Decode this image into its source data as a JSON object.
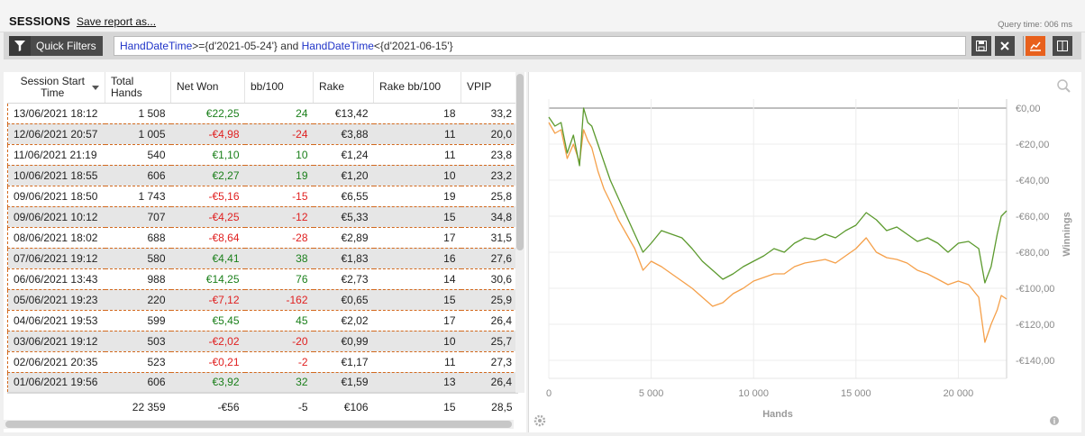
{
  "header": {
    "title": "SESSIONS",
    "save_link": "Save report as...",
    "query_time": "Query time: 006 ms"
  },
  "filter": {
    "button_label": "Quick Filters",
    "kw1": "HandDateTime",
    "op1": ">=",
    "val1": "{d'2021-05-24'}",
    "conj": " and ",
    "kw2": "HandDateTime",
    "op2": "<",
    "val2": "{d'2021-06-15'}"
  },
  "toolbar": {
    "icons": [
      "save-icon",
      "clear-icon",
      "chart-icon",
      "split-view-icon"
    ],
    "active_color": "#e8601c"
  },
  "table": {
    "columns": [
      "Session Start Time",
      "Total Hands",
      "Net Won",
      "bb/100",
      "Rake",
      "Rake bb/100",
      "VPIP"
    ],
    "rows": [
      [
        "13/06/2021 18:12",
        "1 508",
        "€22,25",
        "24",
        "€13,42",
        "18",
        "33,2"
      ],
      [
        "12/06/2021 20:57",
        "1 005",
        "-€4,98",
        "-24",
        "€3,88",
        "11",
        "20,0"
      ],
      [
        "11/06/2021 21:19",
        "540",
        "€1,10",
        "10",
        "€1,24",
        "11",
        "23,8"
      ],
      [
        "10/06/2021 18:55",
        "606",
        "€2,27",
        "19",
        "€1,20",
        "10",
        "23,2"
      ],
      [
        "09/06/2021 18:50",
        "1 743",
        "-€5,16",
        "-15",
        "€6,55",
        "19",
        "25,8"
      ],
      [
        "09/06/2021 10:12",
        "707",
        "-€4,25",
        "-12",
        "€5,33",
        "15",
        "34,8"
      ],
      [
        "08/06/2021 18:02",
        "688",
        "-€8,64",
        "-28",
        "€2,89",
        "17",
        "31,5"
      ],
      [
        "07/06/2021 19:12",
        "580",
        "€4,41",
        "38",
        "€1,83",
        "16",
        "27,6"
      ],
      [
        "06/06/2021 13:43",
        "988",
        "€14,25",
        "76",
        "€2,73",
        "14",
        "30,6"
      ],
      [
        "05/06/2021 19:23",
        "220",
        "-€7,12",
        "-162",
        "€0,65",
        "15",
        "25,9"
      ],
      [
        "04/06/2021 19:53",
        "599",
        "€5,45",
        "45",
        "€2,02",
        "17",
        "26,4"
      ],
      [
        "03/06/2021 19:12",
        "503",
        "-€2,02",
        "-20",
        "€0,99",
        "10",
        "25,7"
      ],
      [
        "02/06/2021 20:35",
        "523",
        "-€0,21",
        "-2",
        "€1,17",
        "11",
        "27,3"
      ],
      [
        "01/06/2021 19:56",
        "606",
        "€3,92",
        "32",
        "€1,59",
        "13",
        "26,4"
      ]
    ],
    "totals": [
      "",
      "22 359",
      "-€56",
      "-5",
      "€106",
      "15",
      "28,5"
    ]
  },
  "chart_data": {
    "type": "line",
    "xlabel": "Hands",
    "ylabel": "Winnings",
    "xlim": [
      0,
      22359
    ],
    "ylim": [
      -150,
      5
    ],
    "x_ticks": [
      0,
      5000,
      10000,
      15000,
      20000
    ],
    "x_tick_labels": [
      "0",
      "5 000",
      "10 000",
      "15 000",
      "20 000"
    ],
    "y_ticks": [
      0,
      -20,
      -40,
      -60,
      -80,
      -100,
      -120,
      -140
    ],
    "y_tick_labels": [
      "€0,00",
      "-€20,00",
      "-€40,00",
      "-€60,00",
      "-€80,00",
      "-€100,00",
      "-€120,00",
      "-€140,00"
    ],
    "grid": true,
    "series": [
      {
        "color": "#5c9a2e",
        "x": [
          0,
          300,
          600,
          900,
          1200,
          1500,
          1700,
          1900,
          2100,
          2400,
          2700,
          3000,
          3400,
          3800,
          4200,
          4600,
          5000,
          5500,
          6000,
          6500,
          7000,
          7500,
          8000,
          8500,
          9000,
          9500,
          10000,
          10500,
          11000,
          11500,
          12000,
          12500,
          13000,
          13500,
          14000,
          14500,
          15000,
          15500,
          16000,
          16500,
          17000,
          17500,
          18000,
          18500,
          19000,
          19500,
          20000,
          20500,
          21000,
          21300,
          21600,
          21900,
          22100,
          22359
        ],
        "y": [
          -5,
          -10,
          -8,
          -25,
          -15,
          -32,
          0,
          -8,
          -10,
          -20,
          -30,
          -40,
          -50,
          -60,
          -70,
          -80,
          -75,
          -68,
          -70,
          -72,
          -78,
          -85,
          -90,
          -95,
          -92,
          -88,
          -85,
          -82,
          -78,
          -80,
          -75,
          -72,
          -73,
          -70,
          -72,
          -68,
          -65,
          -58,
          -62,
          -68,
          -66,
          -70,
          -74,
          -72,
          -75,
          -80,
          -75,
          -74,
          -78,
          -97,
          -88,
          -70,
          -60,
          -57
        ]
      },
      {
        "color": "#f5a04a",
        "x": [
          0,
          300,
          600,
          900,
          1200,
          1500,
          1700,
          1900,
          2100,
          2400,
          2700,
          3000,
          3400,
          3800,
          4200,
          4600,
          5000,
          5500,
          6000,
          6500,
          7000,
          7500,
          8000,
          8500,
          9000,
          9500,
          10000,
          10500,
          11000,
          11500,
          12000,
          12500,
          13000,
          13500,
          14000,
          14500,
          15000,
          15500,
          16000,
          16500,
          17000,
          17500,
          18000,
          18500,
          19000,
          19500,
          20000,
          20500,
          21000,
          21300,
          21600,
          21900,
          22100,
          22359
        ],
        "y": [
          -8,
          -14,
          -12,
          -28,
          -20,
          -30,
          -12,
          -18,
          -22,
          -35,
          -45,
          -52,
          -62,
          -70,
          -78,
          -90,
          -85,
          -88,
          -92,
          -96,
          -100,
          -105,
          -110,
          -108,
          -103,
          -100,
          -96,
          -94,
          -92,
          -92,
          -88,
          -86,
          -85,
          -84,
          -86,
          -82,
          -78,
          -72,
          -80,
          -83,
          -84,
          -86,
          -90,
          -92,
          -95,
          -98,
          -96,
          -98,
          -105,
          -130,
          -120,
          -112,
          -104,
          -106
        ]
      }
    ]
  }
}
